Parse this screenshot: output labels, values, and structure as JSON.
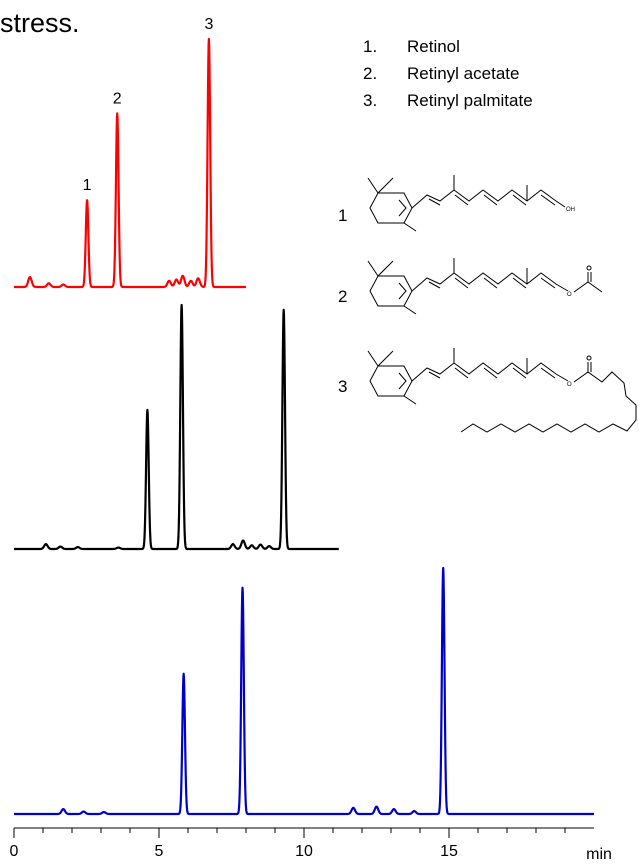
{
  "header_fragment": "stress.",
  "legend": [
    {
      "num": "1.",
      "name": "Retinol"
    },
    {
      "num": "2.",
      "name": "Retinyl acetate"
    },
    {
      "num": "3.",
      "name": "Retinyl palmitate"
    }
  ],
  "structures": [
    {
      "num": "1",
      "group": "OH"
    },
    {
      "num": "2",
      "group": "O"
    },
    {
      "num": "3",
      "group": "O"
    }
  ],
  "chart_data": {
    "type": "line",
    "xlabel": "",
    "x_unit": "min",
    "xlim": [
      0,
      20
    ],
    "xticks": [
      0,
      5,
      10,
      15
    ],
    "ylabel": "",
    "grid": false,
    "series": [
      {
        "color": "#ff0000",
        "x_range": [
          0,
          8
        ],
        "peak_labels": [
          "1",
          "2",
          "3"
        ],
        "peaks": [
          [
            2.52,
            1.0
          ],
          [
            3.56,
            1.0
          ],
          [
            6.72,
            1.0
          ]
        ],
        "peak_heights": [
          0.35,
          0.7,
          1.0
        ],
        "minor": [
          [
            0.55,
            0.04
          ],
          [
            1.2,
            0.015
          ],
          [
            1.7,
            0.01
          ],
          [
            5.35,
            0.025
          ],
          [
            5.6,
            0.03
          ],
          [
            5.82,
            0.045
          ],
          [
            6.1,
            0.025
          ],
          [
            6.35,
            0.035
          ]
        ]
      },
      {
        "color": "#000000",
        "x_range": [
          0,
          11.2
        ],
        "peaks": [
          [
            4.6,
            0.57
          ],
          [
            5.78,
            1.0
          ],
          [
            9.3,
            0.98
          ]
        ],
        "minor": [
          [
            1.1,
            0.02
          ],
          [
            1.6,
            0.01
          ],
          [
            2.2,
            0.008
          ],
          [
            3.6,
            0.006
          ],
          [
            7.55,
            0.02
          ],
          [
            7.9,
            0.035
          ],
          [
            8.2,
            0.015
          ],
          [
            8.5,
            0.018
          ],
          [
            8.8,
            0.012
          ]
        ]
      },
      {
        "color": "#0000cc",
        "x_range": [
          0,
          20
        ],
        "peaks": [
          [
            5.85,
            0.57
          ],
          [
            7.88,
            0.92
          ],
          [
            14.8,
            1.0
          ]
        ],
        "minor": [
          [
            1.7,
            0.02
          ],
          [
            2.4,
            0.01
          ],
          [
            3.1,
            0.008
          ],
          [
            11.7,
            0.025
          ],
          [
            12.5,
            0.03
          ],
          [
            13.1,
            0.02
          ],
          [
            13.8,
            0.012
          ]
        ]
      }
    ]
  }
}
